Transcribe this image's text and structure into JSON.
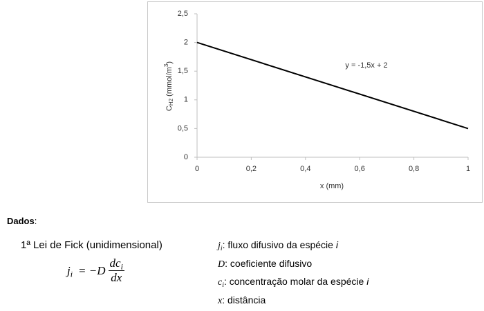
{
  "chart_data": {
    "type": "line",
    "x": [
      0,
      1
    ],
    "values": [
      2,
      0.5
    ],
    "color": "#000000",
    "xlim": [
      0,
      1
    ],
    "ylim": [
      0,
      2.5
    ],
    "xticks": [
      0,
      {
        "value": 0.2,
        "label": "0,2"
      },
      {
        "value": 0.4,
        "label": "0,4"
      },
      {
        "value": 0.6,
        "label": "0,6"
      },
      {
        "value": 0.8,
        "label": "0,8"
      },
      1
    ],
    "yticks": [
      0,
      {
        "value": 0.5,
        "label": "0,5"
      },
      1,
      {
        "value": 1.5,
        "label": "1,5"
      },
      2,
      {
        "value": 2.5,
        "label": "2,5"
      }
    ],
    "x_label": "x (mm)",
    "y_label": {
      "symbol": "C",
      "subscript": "H2",
      "unit": " (mmol/m",
      "superscript": "3",
      "close": ")"
    },
    "annotation": "y = -1,5x + 2",
    "grid": false
  },
  "document": {
    "heading": "Dados",
    "heading_punct": ":",
    "law_title": "1ª Lei de Fick (unidimensional)",
    "formula": {
      "lhs": "j",
      "lhs_sub": "i",
      "eq": "= −D",
      "num": "dc",
      "num_sub": "i",
      "den": "dx"
    },
    "definitions": [
      {
        "symbol": "j",
        "sub": "i",
        "text": ": fluxo difusivo da espécie ",
        "tail": "i"
      },
      {
        "symbol": "D",
        "text": ": coeficiente difusivo"
      },
      {
        "symbol": "c",
        "sub": "i",
        "text": ": concentração molar da espécie ",
        "tail": "i"
      },
      {
        "symbol": "x",
        "text": ": distância"
      }
    ]
  }
}
